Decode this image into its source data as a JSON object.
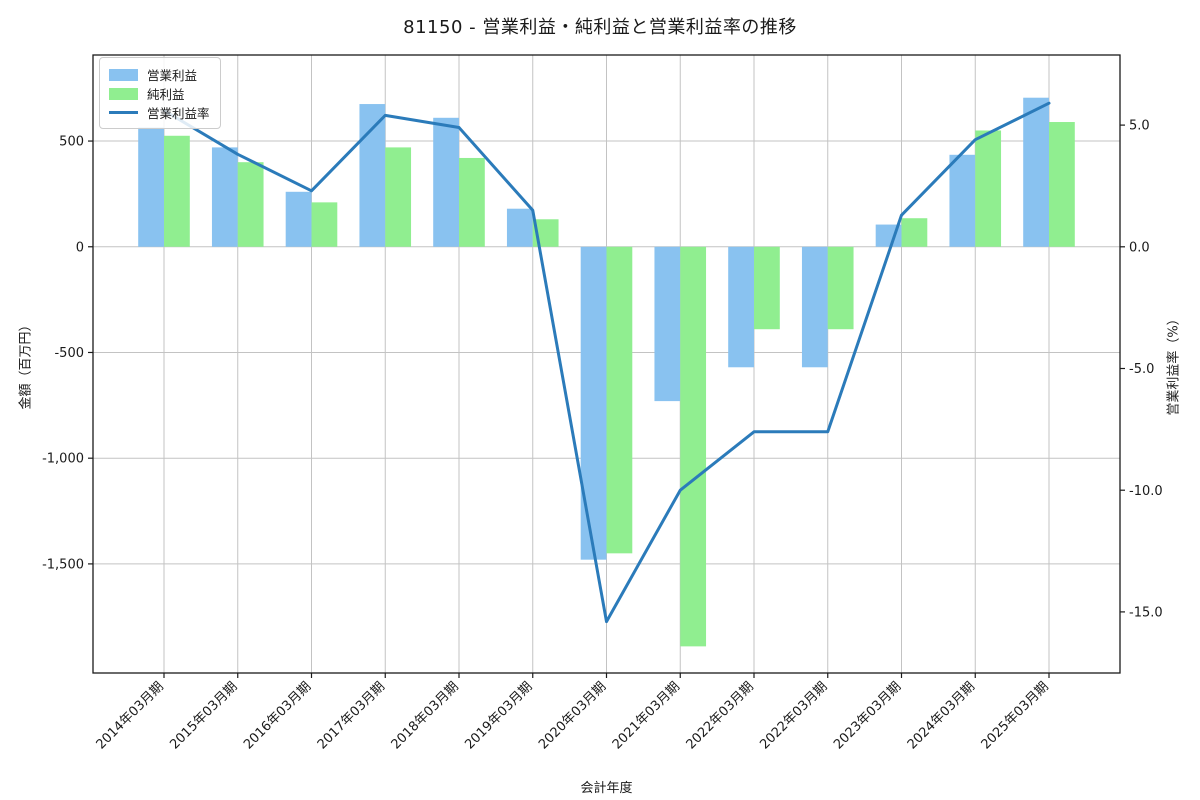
{
  "chart_data": {
    "type": "bar",
    "subtype": "grouped-bars-with-line",
    "title": "81150 - 営業利益・純利益と営業利益率の推移",
    "xlabel": "会計年度",
    "ylabel_left": "金額（百万円）",
    "ylabel_right": "営業利益率（%）",
    "categories": [
      "2014年03月期",
      "2015年03月期",
      "2016年03月期",
      "2017年03月期",
      "2018年03月期",
      "2019年03月期",
      "2020年03月期",
      "2021年03月期",
      "2022年03月期",
      "2022年03月期",
      "2023年03月期",
      "2024年03月期",
      "2025年03月期"
    ],
    "series": [
      {
        "name": "営業利益",
        "type": "bar",
        "axis": "left",
        "color": "#89c2f0",
        "values": [
          565,
          470,
          260,
          675,
          610,
          180,
          -1480,
          -730,
          -570,
          -570,
          105,
          435,
          705
        ]
      },
      {
        "name": "純利益",
        "type": "bar",
        "axis": "left",
        "color": "#90ee90",
        "values": [
          525,
          400,
          210,
          470,
          420,
          130,
          -1450,
          -1890,
          -390,
          -390,
          135,
          550,
          590
        ]
      },
      {
        "name": "営業利益率",
        "type": "line",
        "axis": "right",
        "color": "#2b7bba",
        "values": [
          5.6,
          3.8,
          2.3,
          5.4,
          4.9,
          1.5,
          -15.4,
          -10.0,
          -7.6,
          -7.6,
          1.3,
          4.4,
          5.9
        ]
      }
    ],
    "left_axis": {
      "min": -2016,
      "max": 907,
      "ticks": [
        {
          "value": 500,
          "label": "500"
        },
        {
          "value": 0,
          "label": "0"
        },
        {
          "value": -500,
          "label": "-500"
        },
        {
          "value": -1000,
          "label": "-1,000"
        },
        {
          "value": -1500,
          "label": "-1,500"
        }
      ]
    },
    "right_axis": {
      "min": -17.51,
      "max": 7.88,
      "ticks": [
        {
          "value": 5,
          "label": "5.0"
        },
        {
          "value": 0,
          "label": "0.0"
        },
        {
          "value": -5,
          "label": "-5.0"
        },
        {
          "value": -10,
          "label": "-10.0"
        },
        {
          "value": -15,
          "label": "-15.0"
        }
      ]
    },
    "legend": {
      "position": "upper-left",
      "items": [
        "営業利益",
        "純利益",
        "営業利益率"
      ]
    },
    "grid": true,
    "style": {
      "grid_color": "#c3c3c3",
      "spine_color": "#1a1a1a",
      "text_color": "#1a1a1a",
      "background": "#ffffff"
    }
  }
}
